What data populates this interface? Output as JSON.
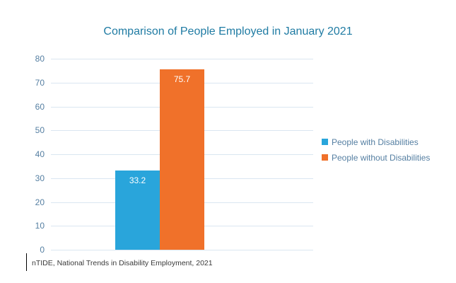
{
  "chart_data": {
    "type": "bar",
    "title": "Comparison of People Employed in January 2021",
    "categories": [
      "People with Disabilities",
      "People without Disabilities"
    ],
    "values": [
      33.2,
      75.7
    ],
    "data_labels": [
      "33.2",
      "75.7"
    ],
    "colors": [
      "#29A5DB",
      "#F0712A"
    ],
    "xlabel": "",
    "ylabel": "",
    "ylim": [
      0,
      80
    ],
    "yticks": [
      0,
      10,
      20,
      30,
      40,
      50,
      60,
      70,
      80
    ],
    "grid": true,
    "legend_position": "right",
    "legend": [
      "People with Disabilities",
      "People without Disabilities"
    ]
  },
  "footer": {
    "source": "nTIDE, National Trends in Disability Employment, 2021"
  },
  "colors": {
    "title_text": "#1F7BA3",
    "axis_text": "#557FA2",
    "gridline": "#DAE6F1",
    "bar_blue": "#29A5DB",
    "bar_orange": "#F0712A",
    "footer_text": "#3A3A3A"
  }
}
